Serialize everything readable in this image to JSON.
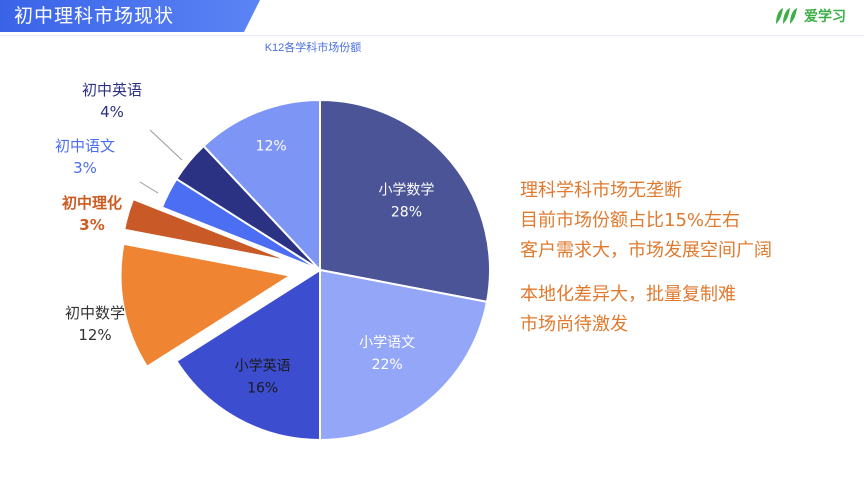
{
  "header": {
    "title": "初中理科市场现状"
  },
  "logo": {
    "text": "爱学习"
  },
  "colors": {
    "header_blue": "#3d6df0",
    "orange": "#e07a2f",
    "logo_green": "#3fae49"
  },
  "chart_data": {
    "type": "pie",
    "title": "K12各学科市场份额",
    "slices": [
      {
        "label": "小学数学",
        "value": 28,
        "value_label": "28%",
        "color": "#4a5496",
        "exploded": false
      },
      {
        "label": "小学语文",
        "value": 22,
        "value_label": "22%",
        "color": "#93a6f7",
        "exploded": false
      },
      {
        "label": "小学英语",
        "value": 16,
        "value_label": "16%",
        "color": "#3d4dd0",
        "exploded": false
      },
      {
        "label": "初中数学",
        "value": 12,
        "value_label": "12%",
        "color": "#ef8433",
        "exploded": true
      },
      {
        "label": "初中理化",
        "value": 3,
        "value_label": "3%",
        "color": "#c95a27",
        "exploded": true
      },
      {
        "label": "初中语文",
        "value": 3,
        "value_label": "3%",
        "color": "#4b6ef2",
        "exploded": false
      },
      {
        "label": "初中英语",
        "value": 4,
        "value_label": "4%",
        "color": "#2b3283",
        "exploded": false
      },
      {
        "label": "",
        "value": 12,
        "value_label": "12%",
        "color": "#7d95f5",
        "exploded": false
      }
    ]
  },
  "notes": {
    "line1": "理科学科市场无垄断",
    "line2_prefix": "目前市场份额占比",
    "line2_value": "15%",
    "line2_suffix": "左右",
    "line3": "客户需求大，市场发展空间广阔",
    "line4": "本地化差异大，批量复制难",
    "line5": "市场尚待激发"
  }
}
